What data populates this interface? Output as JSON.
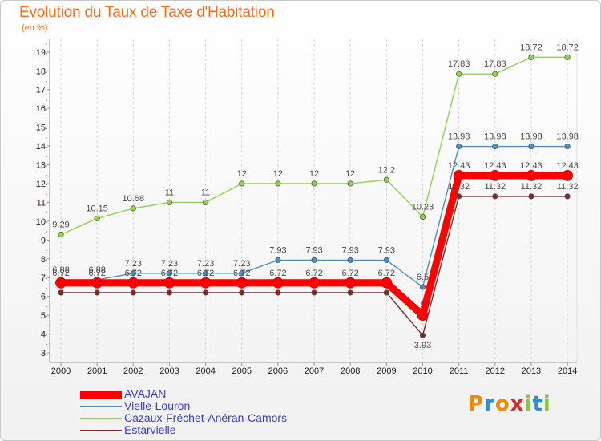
{
  "title": "Evolution du Taux de Taxe d'Habitation",
  "subtitle": "(en %)",
  "logo": {
    "text": "Proxiti",
    "colors": [
      "#f08a00",
      "#2a8fd6",
      "#f08a00",
      "#d62a2a",
      "#8cc63f",
      "#2a8fd6",
      "#8cc63f"
    ]
  },
  "chart_data": {
    "type": "line",
    "title": "Evolution du Taux de Taxe d'Habitation",
    "ylabel": "(en %)",
    "xlabel": "",
    "ylim": [
      3,
      19
    ],
    "yticks": [
      3,
      4,
      5,
      6,
      7,
      8,
      9,
      10,
      11,
      12,
      13,
      14,
      15,
      16,
      17,
      18,
      19
    ],
    "grid": "vertical dashed",
    "legend_position": "bottom-left",
    "x": [
      "2000",
      "2001",
      "2002",
      "2003",
      "2004",
      "2005",
      "2006",
      "2007",
      "2008",
      "2009",
      "2010",
      "2011",
      "2012",
      "2013",
      "2014"
    ],
    "series": [
      {
        "name": "AVAJAN",
        "color": "#ff0000",
        "emphasis": true,
        "values": [
          6.72,
          6.72,
          6.72,
          6.72,
          6.72,
          6.72,
          6.72,
          6.72,
          6.72,
          6.72,
          5,
          12.43,
          12.43,
          12.43,
          12.43
        ],
        "labels": [
          "6.72",
          "6.72",
          "6.72",
          "6.72",
          "6.72",
          "6.72",
          "6.72",
          "6.72",
          "6.72",
          "6.72",
          "5",
          "12.43",
          "12.43",
          "12.43",
          "12.43"
        ]
      },
      {
        "name": "Vielle-Louron",
        "color": "#4a90c8",
        "values": [
          6.88,
          6.88,
          7.23,
          7.23,
          7.23,
          7.23,
          7.93,
          7.93,
          7.93,
          7.93,
          6.5,
          13.98,
          13.98,
          13.98,
          13.98
        ],
        "labels": [
          "6.88",
          "6.88",
          "7.23",
          "7.23",
          "7.23",
          "7.23",
          "7.93",
          "7.93",
          "7.93",
          "7.93",
          "6.5",
          "13.98",
          "13.98",
          "13.98",
          "13.98"
        ]
      },
      {
        "name": "Cazaux-Fréchet-Anéran-Camors",
        "color": "#8ed64a",
        "values": [
          9.29,
          10.15,
          10.68,
          11,
          11,
          12,
          12,
          12,
          12,
          12.2,
          10.23,
          17.83,
          17.83,
          18.72,
          18.72
        ],
        "labels": [
          "9.29",
          "10.15",
          "10.68",
          "11",
          "11",
          "12",
          "12",
          "12",
          "12",
          "12.2",
          "10.23",
          "17.83",
          "17.83",
          "18.72",
          "18.72"
        ]
      },
      {
        "name": "Estarvielle",
        "color": "#7a2a2a",
        "values": [
          6.2,
          6.2,
          6.2,
          6.2,
          6.2,
          6.2,
          6.2,
          6.2,
          6.2,
          6.2,
          3.93,
          11.32,
          11.32,
          11.32,
          11.32
        ],
        "labels": [
          "",
          "",
          "",
          "",
          "",
          "",
          "",
          "",
          "",
          "",
          "3.93",
          "11.32",
          "11.32",
          "11.32",
          "11.32"
        ]
      }
    ]
  }
}
